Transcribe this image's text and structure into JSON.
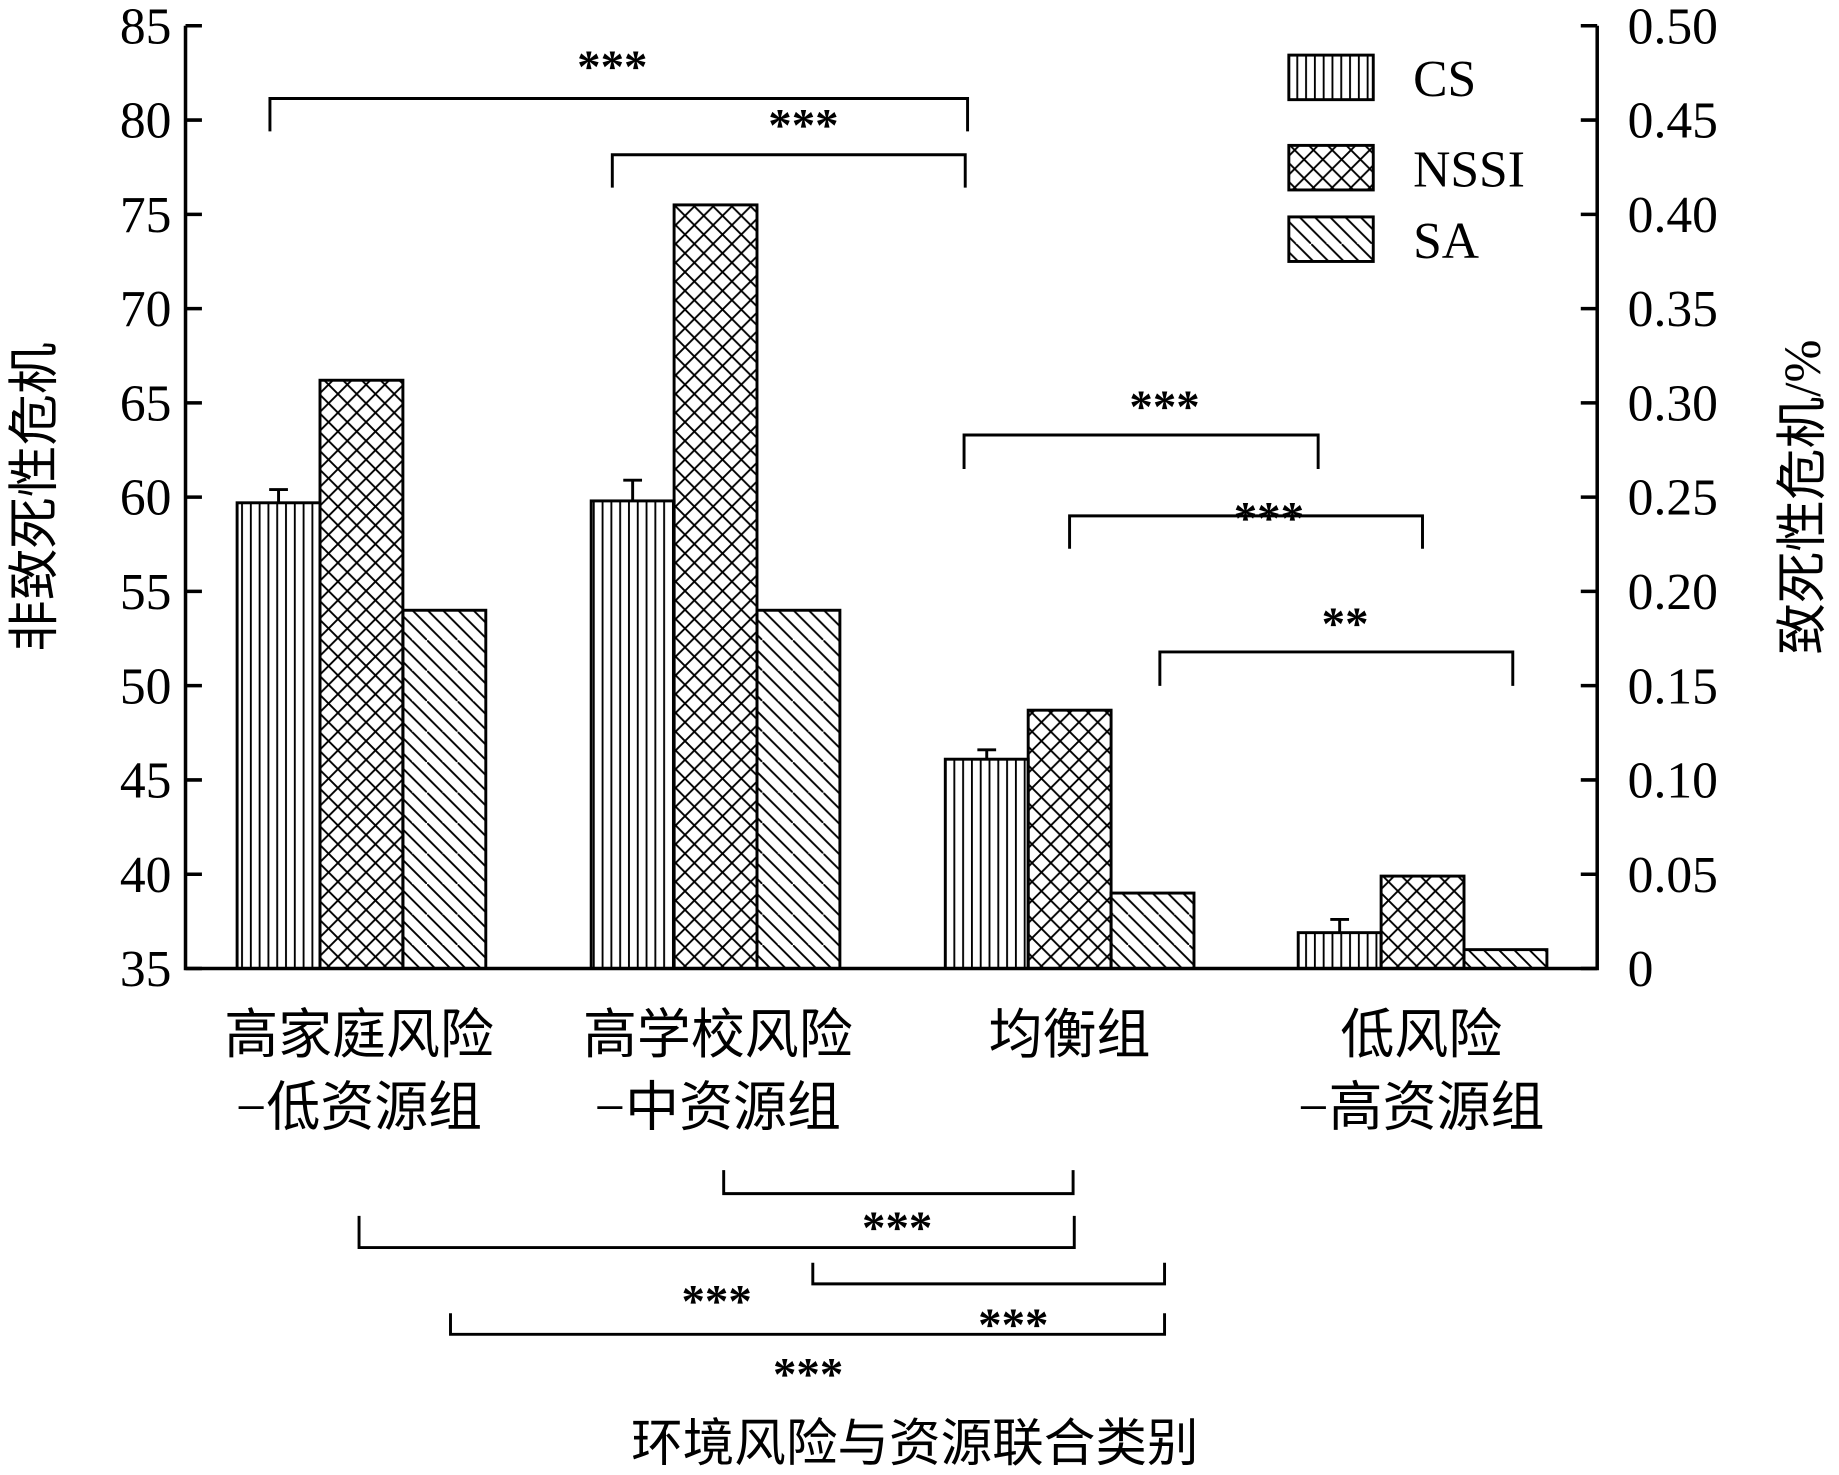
{
  "chart_data": {
    "type": "bar",
    "title": "",
    "xlabel": "环境风险与资源联合类别",
    "ylabel": "非致死性危机",
    "ylabel_right": "致死性危机/%",
    "ylim": [
      35,
      85
    ],
    "ylim_right": [
      0,
      0.5
    ],
    "yticks": [
      "35",
      "40",
      "45",
      "50",
      "55",
      "60",
      "65",
      "70",
      "75",
      "80",
      "85"
    ],
    "yticks_right": [
      "0",
      "0.05",
      "0.10",
      "0.15",
      "0.20",
      "0.25",
      "0.30",
      "0.35",
      "0.40",
      "0.45",
      "0.50"
    ],
    "categories": [
      [
        "高家庭风险",
        "−低资源组"
      ],
      [
        "高学校风险",
        "−中资源组"
      ],
      [
        "均衡组"
      ],
      [
        "低风险",
        "−高资源组"
      ]
    ],
    "series": [
      {
        "name": "CS",
        "axis": "left",
        "pattern": "vertical",
        "values": [
          59.7,
          59.8,
          46.1,
          36.9
        ],
        "error_upper": [
          60.4,
          60.9,
          46.6,
          37.6
        ]
      },
      {
        "name": "NSSI",
        "axis": "left",
        "pattern": "crosshatch",
        "values": [
          66.2,
          75.5,
          48.7,
          39.9
        ]
      },
      {
        "name": "SA",
        "axis": "right",
        "pattern": "diagonal",
        "values": [
          0.19,
          0.19,
          0.04,
          0.01
        ]
      }
    ],
    "legend_position": "top-right",
    "grid": false,
    "annotations": [
      {
        "from": 0,
        "to": 2,
        "label": "***",
        "series": "CS",
        "side": "top"
      },
      {
        "from": 1,
        "to": 2,
        "label": "***",
        "series": "CS",
        "side": "top"
      },
      {
        "from": 2,
        "to": 3,
        "label": "***",
        "series": "CS",
        "side": "top"
      },
      {
        "from": 2,
        "to": 3,
        "label": "***",
        "series": "NSSI",
        "side": "top"
      },
      {
        "from": 2,
        "to": 3,
        "label": "**",
        "series": "SA",
        "side": "top"
      },
      {
        "from": 1,
        "to": 2,
        "label": "***",
        "series": "NSSI",
        "side": "bottom"
      },
      {
        "from": 0,
        "to": 2,
        "label": "***",
        "series": "NSSI",
        "side": "bottom"
      },
      {
        "from": 1,
        "to": 2,
        "label": "***",
        "series": "SA",
        "side": "bottom"
      },
      {
        "from": 0,
        "to": 2,
        "label": "***",
        "series": "SA",
        "side": "bottom"
      }
    ],
    "colors": {
      "ink": "#000000",
      "background": "#ffffff"
    }
  }
}
